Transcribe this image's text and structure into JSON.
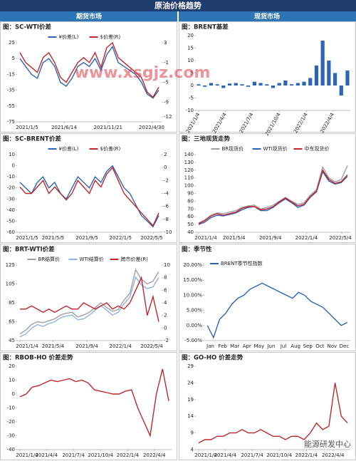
{
  "header": {
    "title": "原油价格趋势",
    "left": "期货市场",
    "right": "现货市场"
  },
  "watermarks": [
    "www.xsgjz.com",
    "能源研发中心"
  ],
  "chart_data": [
    {
      "type": "line",
      "title": "图：SC-WTI价差",
      "x": [
        "2021/1/5",
        "2021/1/26",
        "2021/2/16",
        "2021/3/9",
        "2021/3/30",
        "2021/4/20",
        "2021/5/11",
        "2021/6/1",
        "2021/6/22",
        "2021/7/13",
        "2021/8/3",
        "2021/8/24",
        "2021/9/14",
        "2021/10/5",
        "2021/10/26",
        "2021/11/16",
        "2021/12/7",
        "2021/12/28",
        "2022/1/18",
        "2022/2/8",
        "2022/3/1",
        "2022/3/22",
        "2022/4/12",
        "2022/5/3",
        "2022/5/24"
      ],
      "series": [
        {
          "name": "¥价差(L)",
          "color": "#2e64b4",
          "values": [
            5,
            -5,
            -15,
            -20,
            0,
            5,
            -5,
            -25,
            -30,
            -20,
            -5,
            0,
            -5,
            5,
            -10,
            10,
            20,
            0,
            -5,
            -10,
            -15,
            -25,
            -40,
            -45,
            -35
          ]
        },
        {
          "name": "$价差(R)",
          "color": "#c0272d",
          "axis": "y2",
          "values": [
            1,
            -1,
            -2,
            -3,
            0,
            1,
            -1,
            -4,
            -5,
            -3,
            -1,
            0,
            -1,
            1,
            -2,
            2,
            3,
            0,
            -1,
            -2,
            -3,
            -4,
            -7,
            -8,
            -6
          ]
        }
      ],
      "ylim": [
        -75,
        25
      ],
      "yticks": [
        25,
        5,
        -15,
        -35,
        -55,
        -75
      ],
      "y2lim": [
        -13,
        3
      ],
      "y2ticks": [
        3,
        -1,
        -5,
        -9,
        -12
      ],
      "xticks": [
        "2021/1/5",
        "2021/6/14",
        "2021/11/21",
        "2022/4/30"
      ]
    },
    {
      "type": "bar",
      "title": "图：BRENT基差",
      "color": "#2e64b4",
      "x": [
        "2021/1/4",
        "2021/1/25",
        "2021/2/15",
        "2021/3/8",
        "2021/3/29",
        "2021/4/19",
        "2021/5/10",
        "2021/5/31",
        "2021/6/21",
        "2021/7/12",
        "2021/8/2",
        "2021/8/23",
        "2021/9/13",
        "2021/10/4",
        "2021/10/25",
        "2021/11/15",
        "2021/12/6",
        "2021/12/27",
        "2022/1/17",
        "2022/2/7",
        "2022/2/28",
        "2022/3/21",
        "2022/4/11",
        "2022/5/2",
        "2022/5/23"
      ],
      "values": [
        0.5,
        -0.5,
        1,
        0.5,
        -1,
        0.8,
        1,
        0.5,
        -0.5,
        1.5,
        1,
        0.5,
        -1,
        1,
        2,
        0.5,
        1,
        1.5,
        3,
        8,
        18,
        10,
        5,
        -4,
        6
      ],
      "ylim": [
        -10,
        20
      ],
      "yticks": [
        20,
        15,
        10,
        5,
        0,
        -5,
        -10
      ],
      "xticks": [
        "2021/1/4",
        "2021/4/4",
        "2021/7/4",
        "2021/10/4",
        "2022/1/4",
        "2022/4/4"
      ]
    },
    {
      "type": "line",
      "title": "图：SC-BRENT价差",
      "x": [
        "2021/1/5",
        "2021/1/26",
        "2021/2/16",
        "2021/3/9",
        "2021/3/30",
        "2021/4/20",
        "2021/5/11",
        "2021/6/1",
        "2021/6/22",
        "2021/7/13",
        "2021/8/3",
        "2021/8/24",
        "2021/9/14",
        "2021/10/5",
        "2021/10/26",
        "2021/11/16",
        "2021/12/7",
        "2021/12/28",
        "2022/1/18",
        "2022/2/8",
        "2022/3/1",
        "2022/3/22",
        "2022/4/12",
        "2022/5/3",
        "2022/5/24"
      ],
      "series": [
        {
          "name": "¥价差(L)",
          "color": "#2e64b4",
          "values": [
            -15,
            -20,
            -25,
            -15,
            -10,
            -20,
            -15,
            -25,
            -30,
            -20,
            -10,
            -15,
            -20,
            -10,
            -15,
            -5,
            0,
            -10,
            -20,
            -25,
            -35,
            -45,
            -50,
            -55,
            -45
          ]
        },
        {
          "name": "$价差(R)",
          "color": "#c0272d",
          "axis": "y2",
          "values": [
            -3,
            -4,
            -4,
            -3,
            -2,
            -4,
            -3,
            -4,
            -5,
            -4,
            -2,
            -3,
            -4,
            -2,
            -3,
            -1,
            0,
            -2,
            -4,
            -5,
            -6,
            -7,
            -8,
            -9,
            -7
          ]
        }
      ],
      "ylim": [
        -60,
        10
      ],
      "yticks": [
        10,
        0,
        -10,
        -20,
        -30,
        -40,
        -50,
        -60
      ],
      "y2lim": [
        -10,
        2
      ],
      "y2ticks": [
        2,
        0,
        -2,
        -4,
        -6,
        -8,
        -10
      ],
      "xticks": [
        "2021/1/5",
        "2021/5/5",
        "2021/9/5",
        "2022/1/5",
        "2022/5/5"
      ]
    },
    {
      "type": "line",
      "title": "图：三地现货走势",
      "x": [
        "2021/1/4",
        "2021/1/25",
        "2021/2/15",
        "2021/3/8",
        "2021/3/29",
        "2021/4/19",
        "2021/5/10",
        "2021/5/31",
        "2021/6/21",
        "2021/7/12",
        "2021/8/2",
        "2021/8/23",
        "2021/9/13",
        "2021/10/4",
        "2021/10/25",
        "2021/11/15",
        "2021/12/6",
        "2021/12/27",
        "2022/1/17",
        "2022/2/7",
        "2022/2/28",
        "2022/3/21",
        "2022/4/11",
        "2022/5/2",
        "2022/5/23"
      ],
      "series": [
        {
          "name": "BR现货价",
          "color": "#a0a0a0",
          "values": [
            52,
            56,
            62,
            65,
            64,
            66,
            68,
            72,
            74,
            75,
            70,
            72,
            75,
            80,
            85,
            80,
            76,
            78,
            88,
            95,
            124,
            110,
            105,
            108,
            126
          ]
        },
        {
          "name": "WTI现货价",
          "color": "#2e64b4",
          "values": [
            50,
            53,
            59,
            62,
            61,
            63,
            65,
            69,
            72,
            73,
            68,
            68,
            72,
            78,
            83,
            78,
            72,
            75,
            85,
            92,
            118,
            106,
            102,
            104,
            112
          ]
        },
        {
          "name": "中东现货价",
          "color": "#c0272d",
          "values": [
            51,
            55,
            61,
            64,
            62,
            64,
            66,
            71,
            73,
            73,
            69,
            70,
            73,
            79,
            84,
            79,
            74,
            76,
            86,
            93,
            120,
            108,
            103,
            105,
            114
          ]
        }
      ],
      "ylim": [
        40,
        140
      ],
      "yticks": [
        40,
        50,
        60,
        70,
        80,
        90,
        100,
        110,
        120,
        130,
        140
      ],
      "xticks": [
        "2021/1/4",
        "2021/5/4",
        "2021/9/4",
        "2022/1/4",
        "2022/5/4"
      ]
    },
    {
      "type": "line",
      "title": "图：BRT-WTI价差",
      "x": [
        "2021/1/4",
        "2021/1/25",
        "2021/2/15",
        "2021/3/8",
        "2021/3/29",
        "2021/4/19",
        "2021/5/10",
        "2021/5/31",
        "2021/6/21",
        "2021/7/12",
        "2021/8/2",
        "2021/8/23",
        "2021/9/13",
        "2021/10/4",
        "2021/10/25",
        "2021/11/15",
        "2021/12/6",
        "2021/12/27",
        "2022/1/17",
        "2022/2/7",
        "2022/2/28",
        "2022/3/21",
        "2022/4/11",
        "2022/5/2",
        "2022/5/23"
      ],
      "series": [
        {
          "name": "BR结算价",
          "color": "#a0a0a0",
          "values": [
            52,
            56,
            62,
            65,
            64,
            66,
            68,
            72,
            74,
            75,
            70,
            72,
            75,
            80,
            85,
            80,
            76,
            78,
            88,
            95,
            120,
            110,
            105,
            108,
            118
          ]
        },
        {
          "name": "WTI结算价",
          "color": "#8db4e2",
          "values": [
            49,
            52,
            58,
            62,
            60,
            63,
            65,
            69,
            71,
            72,
            67,
            68,
            72,
            77,
            82,
            77,
            72,
            75,
            84,
            91,
            112,
            104,
            100,
            102,
            112
          ]
        },
        {
          "name": "跨市价差(R)",
          "color": "#c0272d",
          "axis": "y2",
          "values": [
            3,
            3,
            3.5,
            3,
            2.5,
            3,
            2.5,
            3,
            3.5,
            3,
            3,
            4,
            3.5,
            3,
            3.5,
            4,
            3,
            3.5,
            3,
            4,
            6,
            8,
            2,
            5,
            1
          ]
        }
      ],
      "ylim": [
        45,
        125
      ],
      "yticks": [
        45,
        65,
        85,
        105,
        125
      ],
      "y2lim": [
        -2,
        10
      ],
      "y2ticks": [
        -2,
        0,
        2,
        4,
        6,
        8,
        10
      ],
      "xticks": [
        "2021/1/4",
        "2021/5/4",
        "2021/9/4",
        "2022/1/4",
        "2022/5/4"
      ]
    },
    {
      "type": "line",
      "title": "图：季节性",
      "categories": [
        "Jan",
        null,
        "Feb",
        null,
        "Mar",
        null,
        "Apr",
        null,
        "May",
        null,
        "Jun",
        null,
        "Jul",
        null,
        "Aug",
        null,
        "Sep",
        null,
        "Oct",
        null,
        "Nov",
        null,
        "Dec",
        null
      ],
      "series": [
        {
          "name": "BRENT季节性指数",
          "color": "#2e64b4",
          "values": [
            0,
            -4,
            2,
            4,
            7,
            9,
            10,
            12,
            13,
            14,
            13,
            12,
            11,
            10,
            9,
            11,
            10,
            8,
            7,
            6,
            4,
            2,
            0,
            1
          ]
        }
      ],
      "ylim": [
        -5,
        20
      ],
      "yticks": [
        {
          "value": 20,
          "label": "20.00%"
        },
        {
          "value": 15,
          "label": "15.00%"
        },
        {
          "value": 10,
          "label": "10.00%"
        },
        {
          "value": 5,
          "label": "5.00%"
        },
        {
          "value": 0,
          "label": "0.00%"
        },
        {
          "value": -5,
          "label": "-5.00%"
        }
      ]
    },
    {
      "type": "line",
      "title": "图：RBOB-HO 价差走势",
      "x": [
        "2021/1/4",
        "2021/1/25",
        "2021/2/15",
        "2021/3/8",
        "2021/3/29",
        "2021/4/19",
        "2021/5/10",
        "2021/5/31",
        "2021/6/21",
        "2021/7/12",
        "2021/8/2",
        "2021/8/23",
        "2021/9/13",
        "2021/10/4",
        "2021/10/25",
        "2021/11/15",
        "2021/12/6",
        "2021/12/27",
        "2022/1/17",
        "2022/2/7",
        "2022/2/28",
        "2022/3/21",
        "2022/4/11",
        "2022/5/2",
        "2022/5/23"
      ],
      "series": [
        {
          "color": "#c0272d",
          "values": [
            -2,
            0,
            5,
            6,
            8,
            10,
            9,
            10,
            11,
            9,
            10,
            8,
            3,
            2,
            1,
            0,
            0,
            2,
            3,
            -10,
            -20,
            -30,
            0,
            18,
            -5
          ]
        }
      ],
      "ylim": [
        -40,
        20
      ],
      "yticks": [
        20,
        10,
        0,
        -10,
        -20,
        -30,
        -40
      ],
      "xticks": [
        "2021/1/4",
        "2021/4/4",
        "2021/7/4",
        "2021/10/4",
        "2022/1/4",
        "2022/4/4"
      ]
    },
    {
      "type": "line",
      "title": "图：GO-HO 价差走势",
      "x": [
        "2021/1/4",
        "2021/1/25",
        "2021/2/15",
        "2021/3/8",
        "2021/3/29",
        "2021/4/19",
        "2021/5/10",
        "2021/5/31",
        "2021/6/21",
        "2021/7/12",
        "2021/8/2",
        "2021/8/23",
        "2021/9/13",
        "2021/10/4",
        "2021/10/25",
        "2021/11/15",
        "2021/12/6",
        "2021/12/27",
        "2022/1/17",
        "2022/2/7",
        "2022/2/28",
        "2022/3/21",
        "2022/4/11",
        "2022/5/2",
        "2022/5/23"
      ],
      "series": [
        {
          "color": "#c0272d",
          "values": [
            6,
            7,
            7,
            8,
            8,
            9,
            9,
            10,
            9,
            9,
            10,
            9,
            8,
            8,
            7,
            8,
            8,
            7,
            9,
            12,
            10,
            11,
            24,
            14,
            12
          ]
        }
      ],
      "ylim": [
        4,
        29
      ],
      "yticks": [
        29,
        24,
        19,
        14,
        9,
        4
      ],
      "xticks": [
        "2021/1/4",
        "2021/4/4",
        "2021/7/4",
        "2021/10/4",
        "2022/1/4",
        "2022/4/4"
      ]
    }
  ]
}
